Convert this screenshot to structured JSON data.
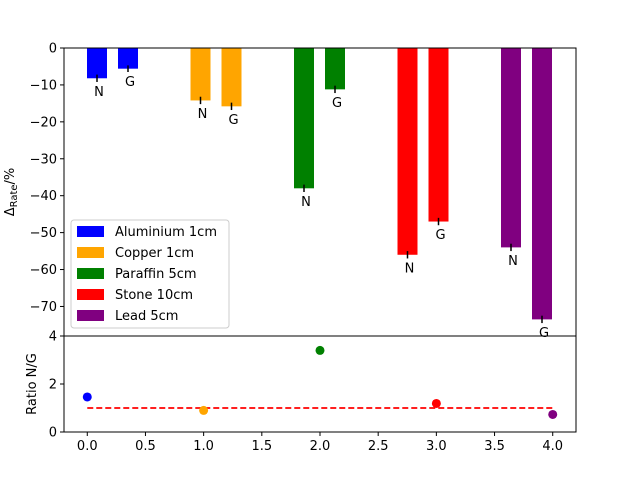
{
  "chart_data": [
    {
      "type": "bar",
      "ylabel": "ΔRate/%",
      "ylabel_main": "Δ",
      "ylabel_sub": "Rate",
      "ylabel_suffix": "/%",
      "ylim": [
        -78,
        0
      ],
      "yticks": [
        0,
        -10,
        -20,
        -30,
        -40,
        -50,
        -60,
        -70
      ],
      "yticklabels": [
        "0",
        "−10",
        "−20",
        "−30",
        "−40",
        "−50",
        "−60",
        "−70"
      ],
      "legend_position": "lower-left",
      "groups": [
        {
          "name": "Aluminium 1cm",
          "color": "#0000ff",
          "bars": [
            {
              "label": "N",
              "value": -8.2,
              "err": 1.0
            },
            {
              "label": "G",
              "value": -5.6,
              "err": 0.9
            }
          ]
        },
        {
          "name": "Copper 1cm",
          "color": "#ffa500",
          "bars": [
            {
              "label": "N",
              "value": -14.2,
              "err": 1.0
            },
            {
              "label": "G",
              "value": -15.8,
              "err": 1.0
            }
          ]
        },
        {
          "name": "Paraffin 5cm",
          "color": "#008000",
          "bars": [
            {
              "label": "N",
              "value": -38.0,
              "err": 1.0
            },
            {
              "label": "G",
              "value": -11.2,
              "err": 1.0
            }
          ]
        },
        {
          "name": "Stone 10cm",
          "color": "#ff0000",
          "bars": [
            {
              "label": "N",
              "value": -56.0,
              "err": 1.0
            },
            {
              "label": "G",
              "value": -47.0,
              "err": 1.0
            }
          ]
        },
        {
          "name": "Lead 5cm",
          "color": "#800080",
          "bars": [
            {
              "label": "N",
              "value": -54.0,
              "err": 1.0
            },
            {
              "label": "G",
              "value": -73.5,
              "err": 1.0
            }
          ]
        }
      ]
    },
    {
      "type": "scatter",
      "ylabel": "Ratio N/G",
      "xlim": [
        -0.2,
        4.2
      ],
      "ylim": [
        0,
        4
      ],
      "xticks": [
        0,
        0.5,
        1,
        1.5,
        2,
        2.5,
        3,
        3.5,
        4
      ],
      "xticklabels": [
        "0.0",
        "0.5",
        "1.0",
        "1.5",
        "2.0",
        "2.5",
        "3.0",
        "3.5",
        "4.0"
      ],
      "yticks": [
        0,
        2,
        4
      ],
      "yticklabels": [
        "0",
        "2",
        "4"
      ],
      "points": [
        {
          "x": 0,
          "y": 1.46,
          "color": "#0000ff"
        },
        {
          "x": 1,
          "y": 0.9,
          "color": "#ffa500"
        },
        {
          "x": 2,
          "y": 3.4,
          "color": "#008000"
        },
        {
          "x": 3,
          "y": 1.19,
          "color": "#ff0000"
        },
        {
          "x": 4,
          "y": 0.73,
          "color": "#800080"
        }
      ],
      "reference_line": {
        "y": 1,
        "x": [
          0,
          4
        ],
        "color": "#ff0000",
        "style": "dashed"
      }
    }
  ]
}
